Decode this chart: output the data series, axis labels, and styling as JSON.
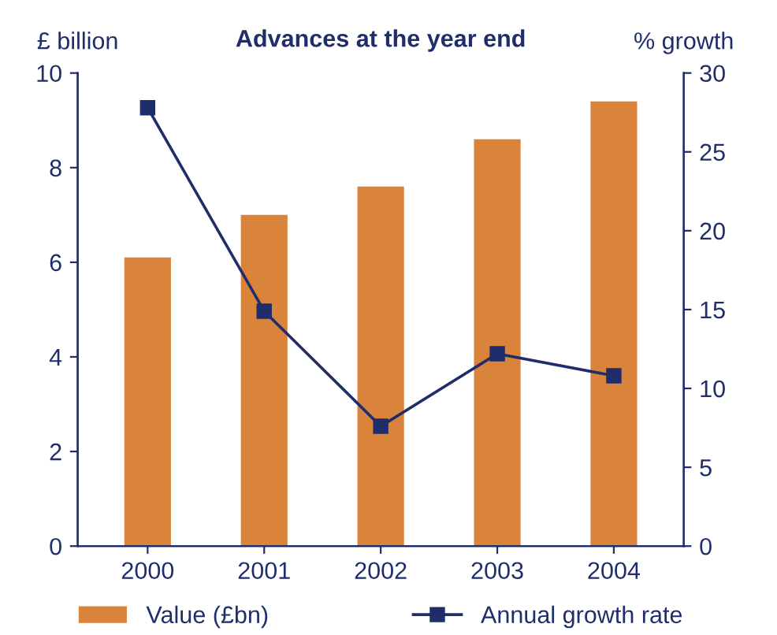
{
  "chart_data": {
    "type": "bar",
    "title": "Advances at the year end",
    "ylabel": "£ billion",
    "y2label": "% growth",
    "categories": [
      "2000",
      "2001",
      "2002",
      "2003",
      "2004"
    ],
    "series": [
      {
        "name": "Value (£bn)",
        "color": "#d9843a",
        "values": [
          6.1,
          7.0,
          7.6,
          8.6,
          9.4
        ]
      },
      {
        "name": "Annual growth rate",
        "type": "line",
        "axis": "y2",
        "color": "#1f2d6b",
        "values": [
          27.8,
          14.9,
          7.6,
          12.2,
          10.8
        ],
        "marker": "square"
      }
    ],
    "ylim": [
      0,
      10
    ],
    "yticks": [
      0,
      2,
      4,
      6,
      8,
      10
    ],
    "y2lim": [
      0,
      30
    ],
    "y2ticks": [
      0,
      5,
      10,
      15,
      20,
      25,
      30
    ],
    "grid": false,
    "legend": "bottom"
  }
}
